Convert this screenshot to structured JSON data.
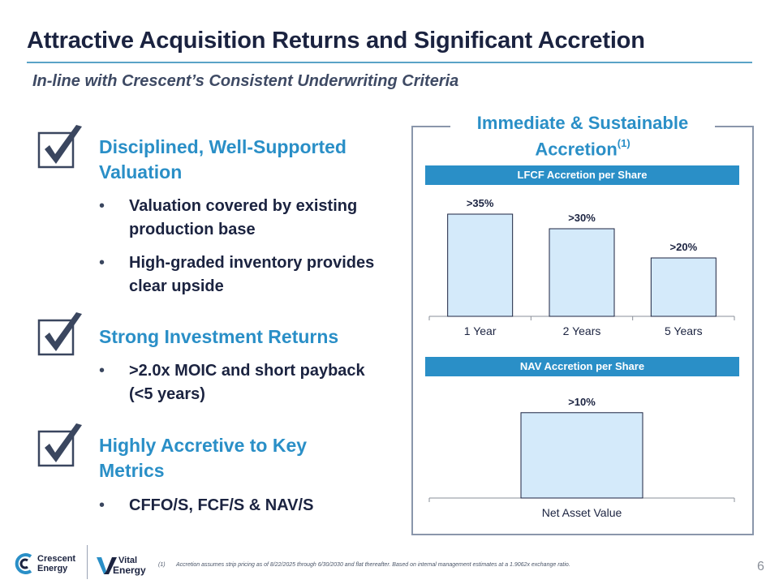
{
  "title": "Attractive Acquisition Returns and Significant Accretion",
  "subtitle": "In-line with Crescent’s Consistent Underwriting Criteria",
  "points": [
    {
      "heading": "Disciplined, Well-Supported Valuation",
      "bullets": [
        "Valuation covered by existing production base",
        "High-graded inventory provides clear upside"
      ]
    },
    {
      "heading": "Strong Investment Returns",
      "bullets": [
        ">2.0x MOIC and short payback (<5 years)"
      ]
    },
    {
      "heading": "Highly Accretive to Key Metrics",
      "bullets": [
        "CFFO/S, FCF/S & NAV/S"
      ]
    }
  ],
  "panel": {
    "title": "Immediate & Sustainable Accretion",
    "title_superscript": "(1)"
  },
  "colors": {
    "accent": "#2a8fc7",
    "bar_fill": "#d4eafa",
    "bar_stroke": "#1b2340",
    "dark": "#1b2340"
  },
  "chart_data": [
    {
      "type": "bar",
      "title": "LFCF Accretion per Share",
      "categories": [
        "1 Year",
        "2 Years",
        "5 Years"
      ],
      "values": [
        35,
        30,
        20
      ],
      "data_labels": [
        ">35%",
        ">30%",
        ">20%"
      ],
      "ylim": [
        0,
        40
      ],
      "xlabel": "",
      "ylabel": "",
      "grid": false,
      "legend": "none"
    },
    {
      "type": "bar",
      "title": "NAV Accretion per Share",
      "categories": [
        "Net Asset Value"
      ],
      "values": [
        10
      ],
      "data_labels": [
        ">10%"
      ],
      "ylim": [
        0,
        11.5
      ],
      "xlabel": "",
      "ylabel": "",
      "grid": false,
      "legend": "none"
    }
  ],
  "logos": {
    "crescent": {
      "icon": "crescent-c-icon",
      "line1": "Crescent",
      "line2": "Energy"
    },
    "vital": {
      "icon": "vital-v-icon",
      "line1": "Vital",
      "line2": "Energy"
    }
  },
  "footnote": {
    "marker": "(1)",
    "text": "Accretion assumes strip pricing as of 8/22/2025 through 6/30/2030 and flat thereafter. Based on internal management estimates at a 1.9062x exchange ratio."
  },
  "page_number": "6"
}
